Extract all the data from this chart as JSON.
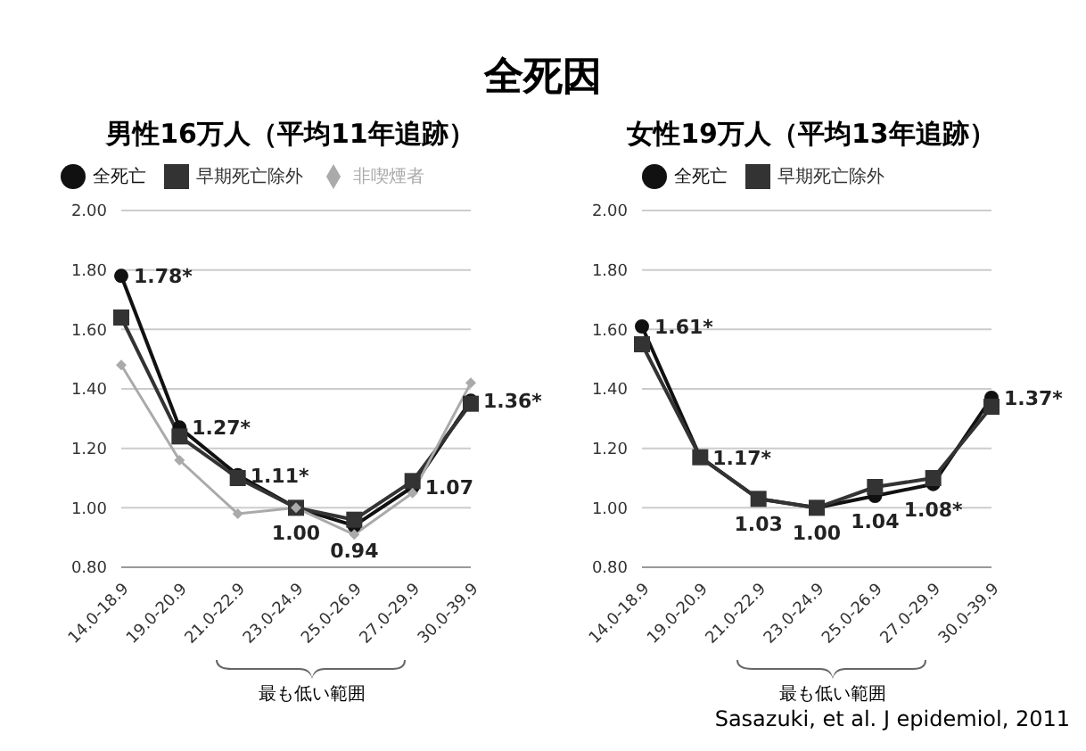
{
  "chart_data": [
    {
      "type": "line",
      "title": "全死因",
      "subtitle": "男性16万人（平均11年追跡）",
      "categories": [
        "14.0-18.9",
        "19.0-20.9",
        "21.0-22.9",
        "23.0-24.9",
        "25.0-26.9",
        "27.0-29.9",
        "30.0-39.9"
      ],
      "series": [
        {
          "name": "全死亡",
          "color": "#111111",
          "marker": "circle",
          "values": [
            1.78,
            1.27,
            1.11,
            1.0,
            0.94,
            1.07,
            1.36
          ],
          "value_labels": [
            "1.78*",
            "1.27*",
            "1.11*",
            "1.00",
            "0.94",
            "1.07",
            "1.36*"
          ]
        },
        {
          "name": "早期死亡除外",
          "color": "#333333",
          "marker": "square",
          "values": [
            1.64,
            1.24,
            1.1,
            1.0,
            0.96,
            1.09,
            1.35
          ]
        },
        {
          "name": "非喫煙者",
          "color": "#aaaaaa",
          "marker": "diamond",
          "values": [
            1.48,
            1.16,
            0.98,
            1.0,
            0.91,
            1.05,
            1.42
          ]
        }
      ],
      "ylim": [
        0.8,
        2.0
      ],
      "yticks": [
        {
          "value": 0.8,
          "label": "0.80"
        },
        {
          "value": 1.0,
          "label": "1.00"
        },
        {
          "value": 1.2,
          "label": "1.20"
        },
        {
          "value": 1.4,
          "label": "1.40"
        },
        {
          "value": 1.6,
          "label": "1.60"
        },
        {
          "value": 1.8,
          "label": "1.80"
        },
        {
          "value": 2.0,
          "label": "2.00"
        }
      ],
      "grid": "y",
      "legend": "top",
      "line_style": "solid",
      "annotations": [
        "最も低い範囲"
      ]
    },
    {
      "type": "line",
      "title": "女性19万人（平均13年追跡）",
      "categories": [
        "14.0-18.9",
        "19.0-20.9",
        "21.0-22.9",
        "23.0-24.9",
        "25.0-26.9",
        "27.0-29.9",
        "30.0-39.9"
      ],
      "series": [
        {
          "name": "全死亡",
          "color": "#111111",
          "marker": "circle",
          "values": [
            1.61,
            1.17,
            1.03,
            1.0,
            1.04,
            1.08,
            1.37
          ],
          "value_labels": [
            "1.61*",
            "1.17*",
            "1.03",
            "1.00",
            "1.04",
            "1.08*",
            "1.37*"
          ]
        },
        {
          "name": "早期死亡除外",
          "color": "#333333",
          "marker": "square",
          "values": [
            1.55,
            1.17,
            1.03,
            1.0,
            1.07,
            1.1,
            1.34
          ]
        }
      ],
      "ylim": [
        0.8,
        2.0
      ],
      "yticks": [
        {
          "value": 0.8,
          "label": "0.80"
        },
        {
          "value": 1.0,
          "label": "1.00"
        },
        {
          "value": 1.2,
          "label": "1.20"
        },
        {
          "value": 1.4,
          "label": "1.40"
        },
        {
          "value": 1.6,
          "label": "1.60"
        },
        {
          "value": 1.8,
          "label": "1.80"
        },
        {
          "value": 2.0,
          "label": "2.00"
        }
      ],
      "grid": "y",
      "legend": "top",
      "line_style": "solid",
      "annotations": [
        "最も低い範囲",
        "Sasazuki, et al. J epidemiol, 2011"
      ]
    }
  ]
}
